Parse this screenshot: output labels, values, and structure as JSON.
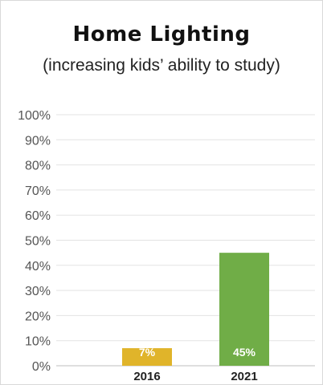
{
  "chart_data": {
    "type": "bar",
    "title": "Home Lighting",
    "subtitle": "(increasing kids’ ability to study)",
    "categories": [
      "2016",
      "2021"
    ],
    "values": [
      7,
      45
    ],
    "data_labels": [
      "7%",
      "45%"
    ],
    "bar_colors": [
      "#e0b42a",
      "#70ad47"
    ],
    "ylim": [
      0,
      100
    ],
    "yticks": [
      0,
      10,
      20,
      30,
      40,
      50,
      60,
      70,
      80,
      90,
      100
    ],
    "ytick_labels": [
      "0%",
      "10%",
      "20%",
      "30%",
      "40%",
      "50%",
      "60%",
      "70%",
      "80%",
      "90%",
      "100%"
    ],
    "xlabel": "",
    "ylabel": "",
    "grid": true,
    "legend": "none"
  }
}
